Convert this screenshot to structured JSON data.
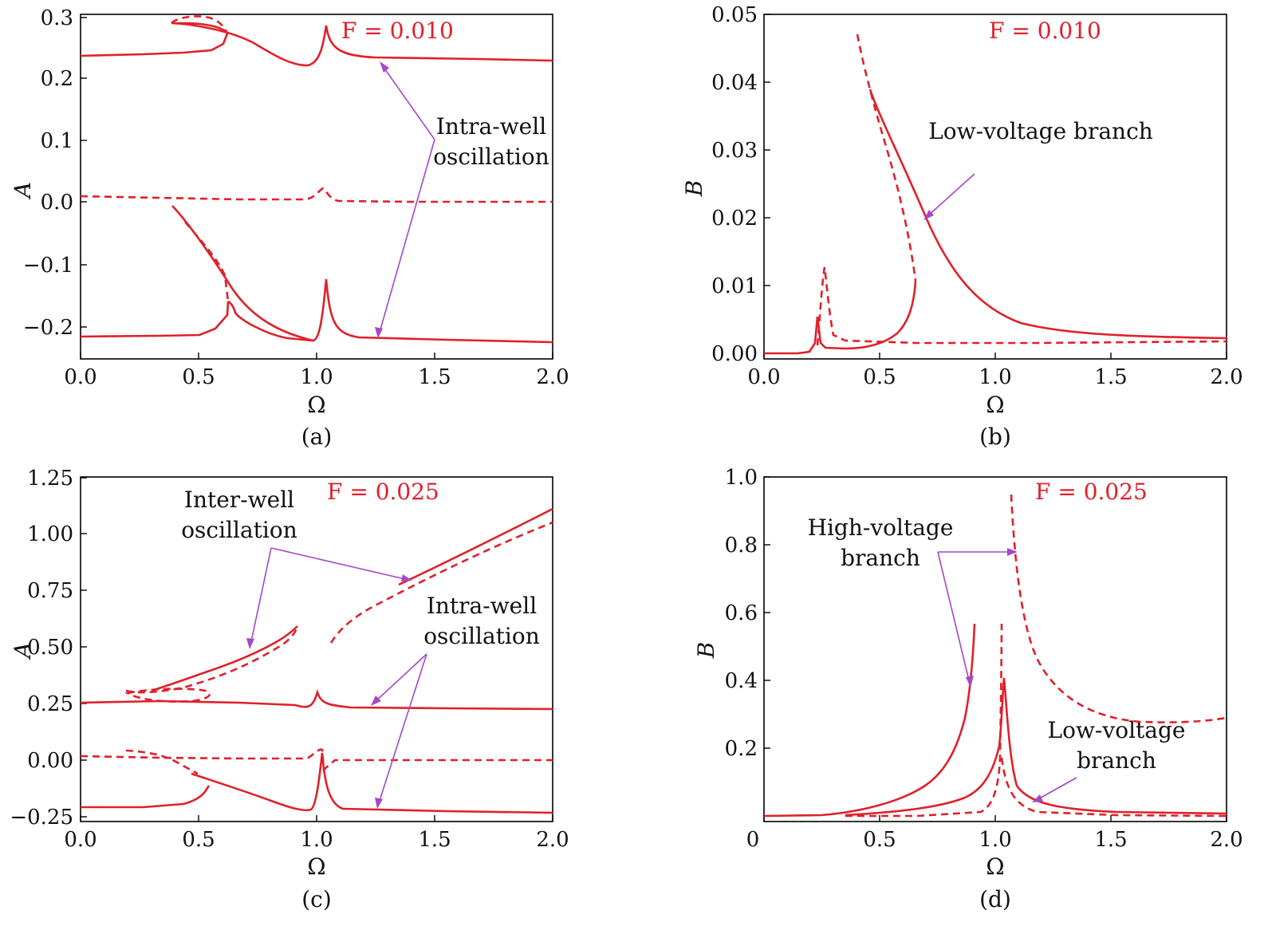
{
  "panels": [
    {
      "id": "a",
      "caption": "(a)",
      "force_label": "F = 0.010",
      "xlabel": "Ω",
      "ylabel": "A",
      "xticks": [
        "0.0",
        "0.5",
        "1.0",
        "1.5",
        "2.0"
      ],
      "yticks": [
        "0.3",
        "0.2",
        "0.1",
        "0.0",
        "−0.1",
        "−0.2"
      ],
      "annotations": [
        "Intra-well",
        "oscillation"
      ]
    },
    {
      "id": "b",
      "caption": "(b)",
      "force_label": "F = 0.010",
      "xlabel": "Ω",
      "ylabel": "B",
      "xticks": [
        "0.0",
        "0.5",
        "1.0",
        "1.5",
        "2.0"
      ],
      "yticks": [
        "0.05",
        "0.04",
        "0.03",
        "0.02",
        "0.01",
        "0.00"
      ],
      "annotations": [
        "Low-voltage branch"
      ]
    },
    {
      "id": "c",
      "caption": "(c)",
      "force_label": "F = 0.025",
      "xlabel": "Ω",
      "ylabel": "A",
      "xticks": [
        "0.0",
        "0.5",
        "1.0",
        "1.5",
        "2.0"
      ],
      "yticks": [
        "1.25",
        "1.00",
        "0.75",
        "0.50",
        "0.25",
        "0.00",
        "−0.25"
      ],
      "annotations": [
        "Inter-well",
        "oscillation",
        "Intra-well",
        "oscillation"
      ]
    },
    {
      "id": "d",
      "caption": "(d)",
      "force_label": "F = 0.025",
      "xlabel": "Ω",
      "ylabel": "B",
      "xticks": [
        "0",
        "0.5",
        "1.0",
        "1.5",
        "2.0"
      ],
      "yticks": [
        "1.0",
        "0.8",
        "0.6",
        "0.4",
        "0.2"
      ],
      "annotations": [
        "High-voltage",
        "branch",
        "Low-voltage",
        "branch"
      ]
    }
  ],
  "colors": {
    "curve": "#e0202a",
    "arrow": "#a646c8",
    "axis": "#000000"
  },
  "chart_data": [
    {
      "type": "line",
      "title": "",
      "xlabel": "Ω",
      "ylabel": "A",
      "xlim": [
        0.0,
        2.0
      ],
      "ylim": [
        -0.25,
        0.3
      ],
      "series": [
        {
          "style": "solid",
          "x": [
            0.0,
            0.3,
            0.5,
            0.58,
            0.6,
            0.7,
            0.9,
            0.97,
            1.0,
            1.02,
            1.05,
            1.2,
            1.5,
            2.0
          ],
          "y": [
            0.235,
            0.237,
            0.24,
            0.245,
            0.27,
            0.26,
            0.228,
            0.228,
            0.24,
            0.285,
            0.24,
            0.234,
            0.232,
            0.228
          ]
        },
        {
          "style": "dashed",
          "x": [
            0.0,
            0.3,
            0.6,
            0.9,
            1.0,
            1.03,
            1.07,
            1.2,
            1.5,
            2.0
          ],
          "y": [
            0.01,
            0.008,
            0.005,
            0.006,
            0.012,
            0.02,
            0.003,
            0.002,
            0.002,
            0.001
          ]
        },
        {
          "style": "solid",
          "x": [
            0.0,
            0.3,
            0.5,
            0.6,
            0.7,
            0.8,
            0.9,
            0.98,
            1.0,
            1.03,
            1.05,
            1.1,
            1.5,
            2.0
          ],
          "y": [
            -0.218,
            -0.217,
            -0.215,
            -0.19,
            -0.2,
            -0.215,
            -0.222,
            -0.222,
            -0.21,
            -0.125,
            -0.2,
            -0.217,
            -0.222,
            -0.228
          ]
        },
        {
          "style": "solid",
          "x": [
            0.4,
            0.5,
            0.6,
            0.7,
            0.8,
            0.9,
            0.97
          ],
          "y": [
            -0.005,
            -0.04,
            -0.09,
            -0.15,
            -0.19,
            -0.215,
            -0.222
          ]
        },
        {
          "style": "dashed",
          "x": [
            0.45,
            0.5,
            0.55,
            0.6
          ],
          "y": [
            -0.03,
            -0.07,
            -0.1,
            -0.14
          ]
        }
      ]
    },
    {
      "type": "line",
      "title": "",
      "xlabel": "Ω",
      "ylabel": "B",
      "xlim": [
        0.0,
        2.0
      ],
      "ylim": [
        0.0,
        0.05
      ],
      "series": [
        {
          "style": "solid",
          "x": [
            0.0,
            0.15,
            0.2,
            0.22,
            0.23,
            0.24,
            0.26,
            0.3,
            0.4,
            0.5,
            0.6,
            0.64,
            0.65
          ],
          "y": [
            0.0,
            0.0002,
            0.001,
            0.003,
            0.005,
            0.0015,
            0.0008,
            0.0012,
            0.0015,
            0.0025,
            0.005,
            0.009,
            0.0125
          ]
        },
        {
          "style": "solid",
          "x": [
            0.45,
            0.5,
            0.6,
            0.7,
            0.8,
            0.9,
            1.0,
            1.2,
            1.5,
            2.0
          ],
          "y": [
            0.039,
            0.035,
            0.026,
            0.019,
            0.012,
            0.008,
            0.006,
            0.004,
            0.003,
            0.002
          ]
        },
        {
          "style": "dashed",
          "x": [
            0.24,
            0.25,
            0.26,
            0.27,
            0.3,
            0.4,
            0.6,
            1.0,
            1.5,
            2.0
          ],
          "y": [
            0.001,
            0.006,
            0.0125,
            0.003,
            0.002,
            0.0015,
            0.0014,
            0.0015,
            0.0016,
            0.0018
          ]
        },
        {
          "style": "dashed",
          "x": [
            0.4,
            0.45,
            0.5,
            0.55,
            0.6,
            0.63,
            0.65
          ],
          "y": [
            0.047,
            0.04,
            0.033,
            0.027,
            0.021,
            0.017,
            0.0125
          ]
        }
      ]
    },
    {
      "type": "line",
      "title": "",
      "xlabel": "Ω",
      "ylabel": "A",
      "xlim": [
        0.0,
        2.0
      ],
      "ylim": [
        -0.25,
        1.25
      ],
      "series": [
        {
          "style": "solid",
          "x": [
            0.3,
            0.5,
            0.7,
            0.85,
            0.9
          ],
          "y": [
            0.31,
            0.39,
            0.48,
            0.56,
            0.6
          ]
        },
        {
          "style": "dashed",
          "x": [
            0.2,
            0.3,
            0.5,
            0.7,
            0.85,
            0.9
          ],
          "y": [
            0.31,
            0.3,
            0.36,
            0.44,
            0.53,
            0.58
          ]
        },
        {
          "style": "dashed",
          "x": [
            0.2,
            0.28,
            0.45,
            0.55,
            0.45,
            0.28,
            0.2
          ],
          "y": [
            0.29,
            0.28,
            0.28,
            0.3,
            0.32,
            0.31,
            0.29
          ]
        },
        {
          "style": "solid",
          "x": [
            1.3,
            1.5,
            1.75,
            2.0
          ],
          "y": [
            0.8,
            0.9,
            1.0,
            1.11
          ]
        },
        {
          "style": "dashed",
          "x": [
            1.05,
            1.1,
            1.2,
            1.4,
            1.6,
            1.8,
            2.0
          ],
          "y": [
            0.53,
            0.6,
            0.68,
            0.78,
            0.87,
            0.95,
            1.04
          ]
        },
        {
          "style": "solid",
          "x": [
            0.0,
            0.3,
            0.6,
            0.9,
            0.98,
            1.02,
            1.06,
            1.2,
            1.5,
            2.0
          ],
          "y": [
            0.26,
            0.265,
            0.268,
            0.255,
            0.23,
            0.3,
            0.25,
            0.235,
            0.232,
            0.23
          ]
        },
        {
          "style": "dashed",
          "x": [
            0.0,
            0.3,
            0.6,
            0.95,
            1.0,
            1.02,
            1.04,
            1.2,
            1.5,
            2.0
          ],
          "y": [
            0.02,
            0.015,
            0.01,
            0.01,
            0.05,
            0.06,
            0.0,
            0.0,
            0.0,
            0.0
          ]
        },
        {
          "style": "dashed",
          "x": [
            0.18,
            0.25,
            0.35,
            0.45
          ],
          "y": [
            0.05,
            0.03,
            -0.03,
            -0.06
          ]
        },
        {
          "style": "solid",
          "x": [
            0.0,
            0.25,
            0.45,
            0.52,
            0.53
          ],
          "y": [
            -0.2,
            -0.2,
            -0.17,
            -0.14,
            -0.11
          ]
        },
        {
          "style": "solid",
          "x": [
            0.45,
            0.6,
            0.8,
            0.93,
            0.98,
            1.0,
            1.02,
            1.04,
            1.1,
            1.5,
            2.0
          ],
          "y": [
            -0.06,
            -0.1,
            -0.16,
            -0.22,
            -0.2,
            -0.05,
            0.02,
            -0.15,
            -0.2,
            -0.215,
            -0.22
          ]
        }
      ]
    },
    {
      "type": "line",
      "title": "",
      "xlabel": "Ω",
      "ylabel": "B",
      "xlim": [
        0.0,
        2.0
      ],
      "ylim": [
        0.0,
        1.0
      ],
      "series": [
        {
          "style": "solid",
          "x": [
            0.0,
            0.3,
            0.5,
            0.7,
            0.8,
            0.85,
            0.88,
            0.9
          ],
          "y": [
            0.0,
            0.005,
            0.02,
            0.08,
            0.17,
            0.27,
            0.4,
            0.57
          ]
        },
        {
          "style": "solid",
          "x": [
            0.0,
            0.5,
            0.8,
            0.95,
            1.0,
            1.02,
            1.03,
            1.05,
            1.1,
            1.2,
            1.5,
            2.0
          ],
          "y": [
            0.0,
            0.008,
            0.02,
            0.06,
            0.15,
            0.41,
            0.35,
            0.12,
            0.05,
            0.025,
            0.012,
            0.008
          ]
        },
        {
          "style": "dashed",
          "x": [
            1.01,
            1.02,
            1.05,
            1.1,
            1.2,
            1.4,
            1.6,
            1.75,
            2.0
          ],
          "y": [
            0.56,
            0.5,
            0.2,
            0.06,
            0.02,
            0.007,
            0.004,
            0.003,
            0.002
          ]
        },
        {
          "style": "dashed",
          "x": [
            1.08,
            1.1,
            1.2,
            1.3,
            1.45,
            1.6,
            1.75,
            2.0
          ],
          "y": [
            0.94,
            0.7,
            0.45,
            0.36,
            0.3,
            0.28,
            0.275,
            0.285
          ]
        }
      ]
    }
  ]
}
